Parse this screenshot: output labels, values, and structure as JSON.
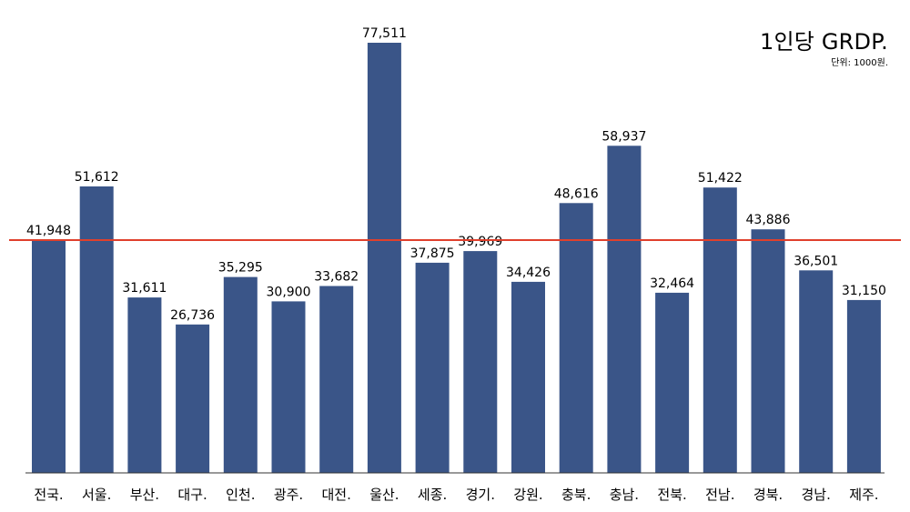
{
  "chart_data": {
    "type": "bar",
    "title": "1인당 GRDP.",
    "subtitle": "단위: 1000원.",
    "xlabel": "",
    "ylabel": "",
    "categories": [
      "전국.",
      "서울.",
      "부산.",
      "대구.",
      "인천.",
      "광주.",
      "대전.",
      "울산.",
      "세종.",
      "경기.",
      "강원.",
      "충북.",
      "충남.",
      "전북.",
      "전남.",
      "경북.",
      "경남.",
      "제주."
    ],
    "values": [
      41948,
      51612,
      31611,
      26736,
      35295,
      30900,
      33682,
      77511,
      37875,
      39969,
      34426,
      48616,
      58937,
      32464,
      51422,
      43886,
      36501,
      31150
    ],
    "data_labels": [
      "41,948",
      "51,612",
      "31,611",
      "26,736",
      "35,295",
      "30,900",
      "33,682",
      "77,511",
      "37,875",
      "39,969",
      "34,426",
      "48,616",
      "58,937",
      "32,464",
      "51,422",
      "43,886",
      "36,501",
      "31,150"
    ],
    "reference_line": {
      "value": 41948,
      "color": "#e0402c"
    },
    "ylim": [
      0,
      80000
    ],
    "bar_color": "#3a5588",
    "grid": false,
    "legend": "none"
  }
}
